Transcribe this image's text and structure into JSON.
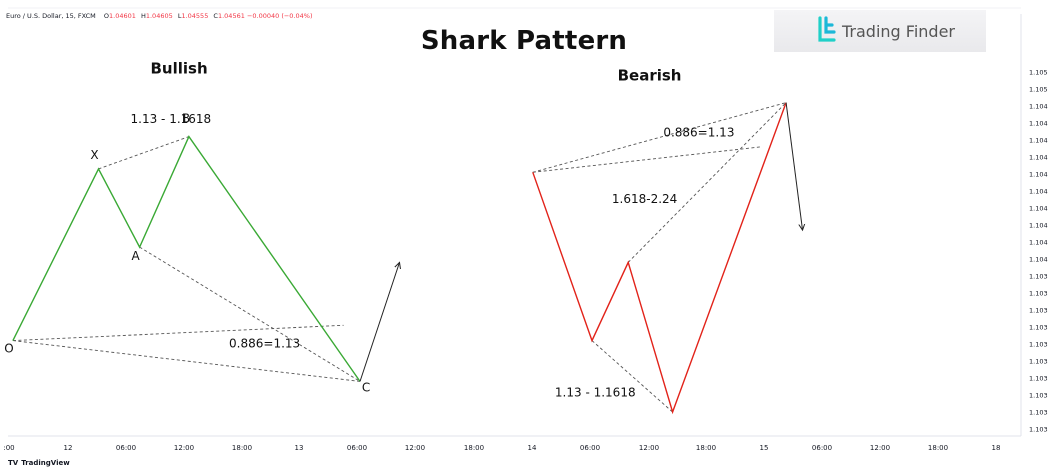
{
  "header": {
    "symbol": "Euro / U.S. Dollar, 15, FXCM",
    "ohlc": [
      {
        "label": "O",
        "value": "1.04601"
      },
      {
        "label": "H",
        "value": "1.04605"
      },
      {
        "label": "L",
        "value": "1.04555"
      },
      {
        "label": "C",
        "value": "1.04561"
      }
    ],
    "change": "−0.00040 (−0.04%)"
  },
  "logo": {
    "text": "Trading Finder"
  },
  "brand": {
    "text": "TradingView"
  },
  "colors": {
    "bullish": "#3aa935",
    "bearish": "#e2231a",
    "projection": "#222222",
    "dashed": "#555555",
    "axis_text": "#131722",
    "logo_accent": "#20d0c8"
  },
  "chart_data": {
    "type": "line",
    "title": "Shark Pattern",
    "ylim": [
      1.1029,
      1.1053
    ],
    "x_ticks": [
      ":00",
      "12",
      "06:00",
      "12:00",
      "18:00",
      "13",
      "06:00",
      "12:00",
      "18:00",
      "14",
      "06:00",
      "12:00",
      "18:00",
      "15",
      "06:00",
      "12:00",
      "18:00",
      "18"
    ],
    "y_ticks": [
      "1.1051",
      "1.1050",
      "1.1049",
      "1.1048",
      "1.1047",
      "1.1046",
      "1.1045",
      "1.1044",
      "1.1043",
      "1.1042",
      "1.1041",
      "1.1040",
      "1.1039",
      "1.1038",
      "1.1037",
      "1.1036",
      "1.1035",
      "1.1034",
      "1.1033",
      "1.1032",
      "1.1031",
      "1.1030"
    ],
    "series": [
      {
        "name": "Bullish",
        "points": [
          {
            "x": 0.3,
            "y": 1.10352,
            "label": "O"
          },
          {
            "x": 5.5,
            "y": 1.10453,
            "label": "X"
          },
          {
            "x": 8.0,
            "y": 1.10407,
            "label": "A"
          },
          {
            "x": 11.0,
            "y": 1.10472,
            "label": "B"
          },
          {
            "x": 21.4,
            "y": 1.10328,
            "label": "C"
          }
        ],
        "projection": {
          "from": {
            "x": 21.4,
            "y": 1.10328
          },
          "to": {
            "x": 23.8,
            "y": 1.10398
          }
        }
      },
      {
        "name": "Bearish",
        "points": [
          {
            "x": 31.9,
            "y": 1.10451
          },
          {
            "x": 35.5,
            "y": 1.10352
          },
          {
            "x": 37.7,
            "y": 1.10398
          },
          {
            "x": 40.4,
            "y": 1.1031
          },
          {
            "x": 47.3,
            "y": 1.10492
          }
        ],
        "projection": {
          "from": {
            "x": 47.3,
            "y": 1.10492
          },
          "to": {
            "x": 48.3,
            "y": 1.10417
          }
        }
      }
    ],
    "annotations": [
      {
        "text": "Bullish",
        "x": 10.4,
        "y": 1.10509
      },
      {
        "text": "1.13 - 1.1618",
        "x": 9.9,
        "y": 1.1048
      },
      {
        "text": "0.886=1.13",
        "x": 15.6,
        "y": 1.10348
      },
      {
        "text": "Bearish",
        "x": 39.0,
        "y": 1.10505
      },
      {
        "text": "0.886=1.13",
        "x": 42.0,
        "y": 1.10472
      },
      {
        "text": "1.618-2.24",
        "x": 38.7,
        "y": 1.10433
      },
      {
        "text": "1.13 - 1.1618",
        "x": 35.7,
        "y": 1.10319
      }
    ],
    "dashed_lines": [
      {
        "from": {
          "x": 5.5,
          "y": 1.10453
        },
        "to": {
          "x": 11.0,
          "y": 1.10472
        }
      },
      {
        "from": {
          "x": 0.3,
          "y": 1.10352
        },
        "to": {
          "x": 20.4,
          "y": 1.10361
        }
      },
      {
        "from": {
          "x": 0.3,
          "y": 1.10352
        },
        "to": {
          "x": 21.4,
          "y": 1.10328
        }
      },
      {
        "from": {
          "x": 8.0,
          "y": 1.10407
        },
        "to": {
          "x": 21.4,
          "y": 1.10328
        }
      },
      {
        "from": {
          "x": 31.9,
          "y": 1.10451
        },
        "to": {
          "x": 47.3,
          "y": 1.10492
        }
      },
      {
        "from": {
          "x": 31.9,
          "y": 1.10451
        },
        "to": {
          "x": 45.8,
          "y": 1.10466
        }
      },
      {
        "from": {
          "x": 37.7,
          "y": 1.10398
        },
        "to": {
          "x": 47.3,
          "y": 1.10492
        }
      },
      {
        "from": {
          "x": 35.5,
          "y": 1.10352
        },
        "to": {
          "x": 40.4,
          "y": 1.1031
        }
      }
    ]
  }
}
